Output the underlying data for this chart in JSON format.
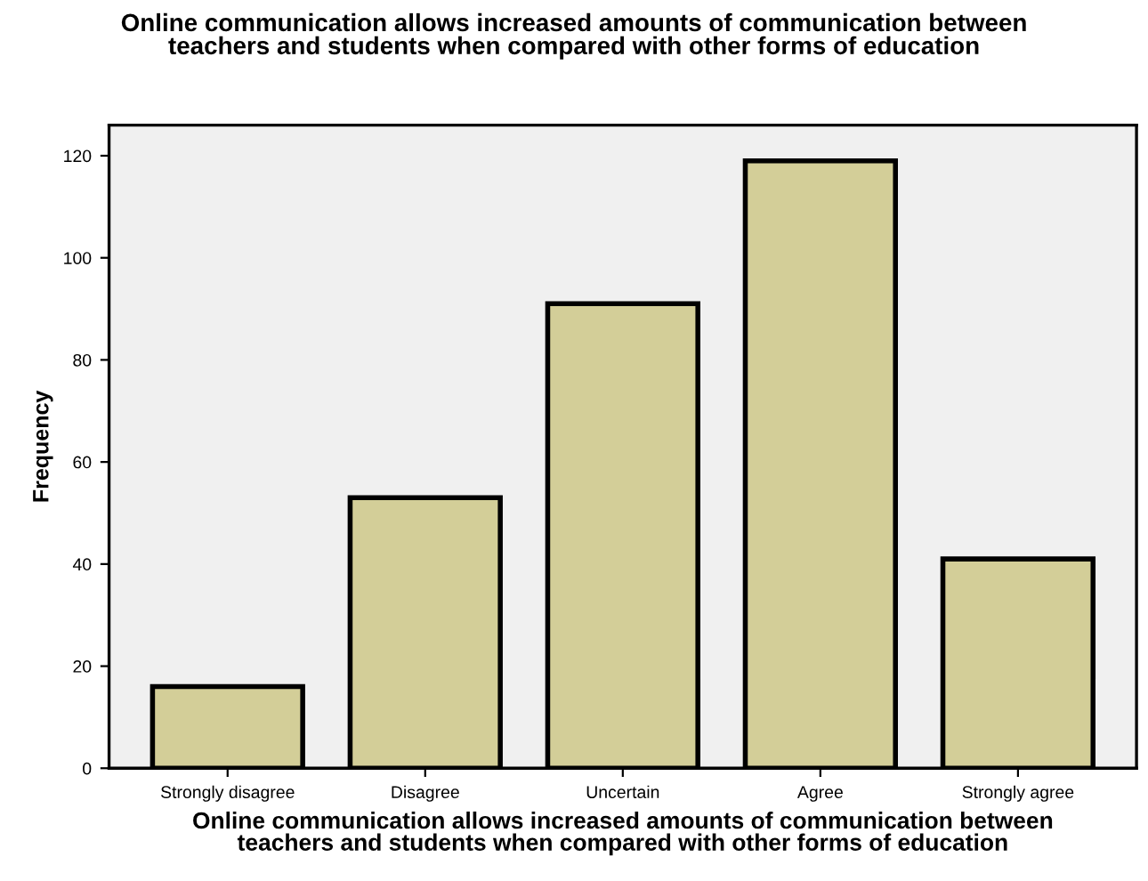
{
  "chart_data": {
    "type": "bar",
    "title": "Online communication allows increased amounts of communication between\nteachers and students when compared with other forms of education",
    "xlabel": "Online communication allows increased amounts of communication between\nteachers and students when compared with other forms of education",
    "ylabel": "Frequency",
    "categories": [
      "Strongly disagree",
      "Disagree",
      "Uncertain",
      "Agree",
      "Strongly agree"
    ],
    "values": [
      16,
      53,
      91,
      119,
      41
    ],
    "color": "#d3ce98",
    "ylim": [
      0,
      126
    ],
    "yticks": [
      0,
      20,
      40,
      60,
      80,
      100,
      120
    ],
    "grid": false,
    "legend": false
  }
}
